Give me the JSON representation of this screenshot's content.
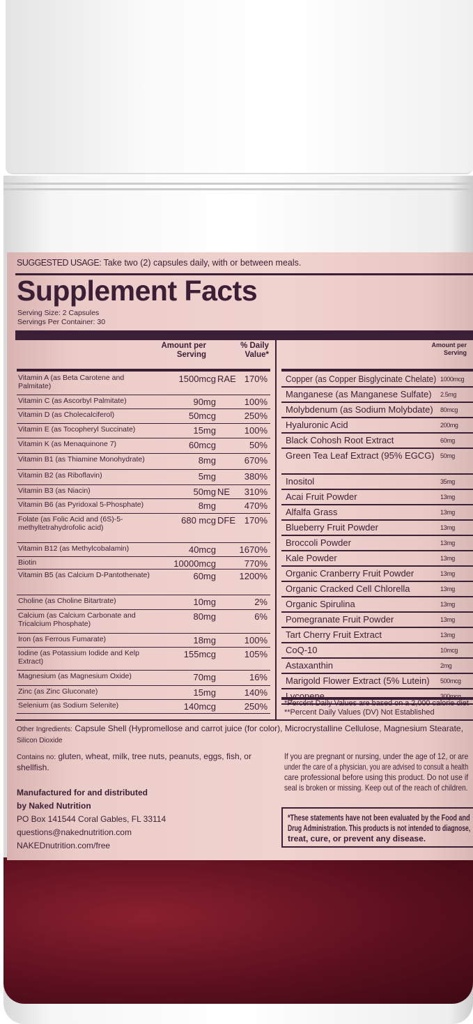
{
  "usage": {
    "label": "SUGGESTED USAGE:",
    "text": " Take two (2) capsules daily, with or between meals."
  },
  "title": "Supplement Facts",
  "serving_size": "Serving Size: 2 Capsules",
  "servings_per_container": "Servings Per Container: 30",
  "headers": {
    "amount": "Amount per Serving",
    "dv": "% Daily Value*",
    "amount_right": "Amount per Serving"
  },
  "left_rows": [
    {
      "name": "Vitamin A (as Beta Carotene and Palmitate)",
      "amount": "1500mcg",
      "unit": "RAE",
      "dv": "170%"
    },
    {
      "name": "Vitamin C (as Ascorbyl Palmitate)",
      "amount": "90mg",
      "unit": "",
      "dv": "100%"
    },
    {
      "name": "Vitamin D (as Cholecalciferol)",
      "amount": "50mcg",
      "unit": "",
      "dv": "250%"
    },
    {
      "name": "Vitamin E (as Tocopheryl Succinate)",
      "amount": "15mg",
      "unit": "",
      "dv": "100%"
    },
    {
      "name": "Vitamin K (as Menaquinone 7)",
      "amount": "60mcg",
      "unit": "",
      "dv": "50%"
    },
    {
      "name": "Vitamin B1 (as Thiamine Monohydrate)",
      "amount": "8mg",
      "unit": "",
      "dv": "670%"
    },
    {
      "name": "Vitamin B2 (as Riboflavin)",
      "amount": "5mg",
      "unit": "",
      "dv": "380%"
    },
    {
      "name": "Vitamin B3 (as Niacin)",
      "amount": "50mg",
      "unit": "NE",
      "dv": "310%"
    },
    {
      "name": "Vitamin B6 (as Pyridoxal 5-Phosphate)",
      "amount": "8mg",
      "unit": "",
      "dv": "470%"
    },
    {
      "name": "Folate (as Folic Acid and (6S)-5-methyltetrahydrofolic acid)",
      "amount": "680 mcg",
      "unit": "DFE",
      "dv": "170%"
    },
    {
      "name": "Vitamin B12 (as Methylcobalamin)",
      "amount": "40mcg",
      "unit": "",
      "dv": "1670%"
    },
    {
      "name": "Biotin",
      "amount": "10000mcg",
      "unit": "",
      "dv": "770%"
    },
    {
      "name": "Vitamin B5 (as Calcium D-Pantothenate)",
      "amount": "60mg",
      "unit": "",
      "dv": "1200%"
    },
    {
      "name": "Choline (as Choline Bitartrate)",
      "amount": "10mg",
      "unit": "",
      "dv": "2%"
    },
    {
      "name": "Calcium (as Calcium Carbonate and Tricalcium Phosphate)",
      "amount": "80mg",
      "unit": "",
      "dv": "6%"
    },
    {
      "name": "Iron (as Ferrous Fumarate)",
      "amount": "18mg",
      "unit": "",
      "dv": "100%"
    },
    {
      "name": "Iodine (as Potassium Iodide and Kelp Extract)",
      "amount": "155mcg",
      "unit": "",
      "dv": "105%"
    },
    {
      "name": "Magnesium (as Magnesium Oxide)",
      "amount": "70mg",
      "unit": "",
      "dv": "16%"
    },
    {
      "name": "Zinc (as Zinc Gluconate)",
      "amount": "15mg",
      "unit": "",
      "dv": "140%"
    },
    {
      "name": "Selenium (as Sodium Selenite)",
      "amount": "140mcg",
      "unit": "",
      "dv": "250%"
    }
  ],
  "right_rows": [
    {
      "name": "Copper (as Copper Bisglycinate Chelate)",
      "amount": "1000mcg"
    },
    {
      "name": "Manganese (as Manganese Sulfate)",
      "amount": "2.5mg"
    },
    {
      "name": "Molybdenum (as Sodium Molybdate)",
      "amount": "80mcg"
    },
    {
      "name": "Hyaluronic Acid",
      "amount": "200mg"
    },
    {
      "name": "Black Cohosh Root Extract",
      "amount": "60mg"
    },
    {
      "name": "Green Tea Leaf Extract (95% EGCG)",
      "amount": "50mg"
    },
    {
      "name": "Inositol",
      "amount": "35mg"
    },
    {
      "name": "Acai Fruit Powder",
      "amount": "13mg"
    },
    {
      "name": "Alfalfa Grass",
      "amount": "13mg"
    },
    {
      "name": "Blueberry Fruit Powder",
      "amount": "13mg"
    },
    {
      "name": "Broccoli Powder",
      "amount": "13mg"
    },
    {
      "name": "Kale Powder",
      "amount": "13mg"
    },
    {
      "name": "Organic Cranberry Fruit Powder",
      "amount": "13mg"
    },
    {
      "name": "Organic Cracked Cell Chlorella",
      "amount": "13mg"
    },
    {
      "name": "Organic Spirulina",
      "amount": "13mg"
    },
    {
      "name": "Pomegranate Fruit Powder",
      "amount": "13mg"
    },
    {
      "name": "Tart Cherry Fruit Extract",
      "amount": "13mg"
    },
    {
      "name": "CoQ-10",
      "amount": "10mcg"
    },
    {
      "name": "Astaxanthin",
      "amount": "2mg"
    },
    {
      "name": "Marigold Flower Extract (5% Lutein)",
      "amount": "500mcg"
    },
    {
      "name": "Lycopene",
      "amount": "300mcg"
    }
  ],
  "footnotes": [
    "*Percent Daily Values are based on a 2,000 calorie diet",
    "**Percent Daily Values (DV) Not Established"
  ],
  "other_ingredients": {
    "label": "Other Ingredients:",
    "text": " Capsule Shell (Hypromellose and carrot juice (for color), Microcrystalline Cellulose, Magnesium Stearate,",
    "text2": "Silicon Dioxide"
  },
  "contains": {
    "label": "Contains no:",
    "text": " gluten, wheat, milk, tree nuts, peanuts, eggs, fish, or shellfish."
  },
  "manufacturer": [
    "Manufactured for and distributed",
    "by Naked Nutrition",
    "PO Box 141544 Coral Gables, FL 33114",
    "questions@nakednutrition.com",
    "NAKEDnutrition.com/free"
  ],
  "warning": [
    "If you are pregnant or nursing, under the age of 12, or are",
    "under the care of a physician, you are advised to consult a health",
    "care professional before using this product. Do not use if",
    "seal is broken or missing. Keep out of the reach of children."
  ],
  "fda": [
    "*These statements have not been evaluated by the Food and",
    "Drug Administration. This products is not intended to diagnose,",
    "treat, cure, or prevent any disease."
  ],
  "colors": {
    "label": "#ecccc9",
    "ink": "#3a1f36",
    "capsule": "#6a1424"
  }
}
